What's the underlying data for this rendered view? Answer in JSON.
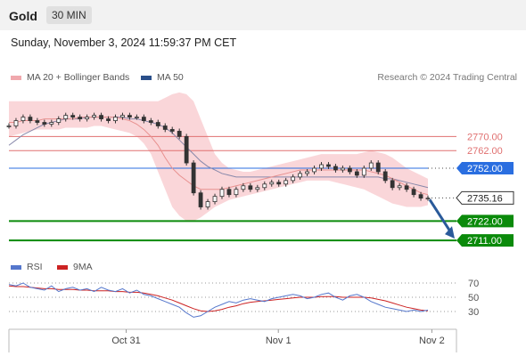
{
  "header": {
    "title": "Gold",
    "timeframe": "30 MIN"
  },
  "datetime": "Sunday, November 3, 2024 11:59:37 PM CET",
  "legend": {
    "ma20": "MA 20 + Bollinger Bands",
    "ma50": "MA 50",
    "rsi": "RSI",
    "rsi_ma": "9MA",
    "credit": "Research © 2024 Trading Central"
  },
  "colors": {
    "band": "#f8c8cc",
    "ma20": "#e8908f",
    "ma50": "#8888aa",
    "resistance": "#e07070",
    "pivot": "#2a6ee0",
    "support": "#0a8a0a",
    "arrow": "#2a5a9a",
    "rsi": "#5577cc",
    "rsi_ma": "#cc2222"
  },
  "chart_data": {
    "type": "line",
    "instrument": "Gold",
    "price_axis_labels": [
      {
        "value": 2770.0,
        "label": "2770.00",
        "kind": "resistance"
      },
      {
        "value": 2762.0,
        "label": "2762.00",
        "kind": "resistance"
      },
      {
        "value": 2752.0,
        "label": "2752.00",
        "kind": "pivot"
      },
      {
        "value": 2735.16,
        "label": "2735.16",
        "kind": "last"
      },
      {
        "value": 2722.0,
        "label": "2722.00",
        "kind": "support"
      },
      {
        "value": 2711.0,
        "label": "2711.00",
        "kind": "support"
      }
    ],
    "ylim": [
      2705,
      2800
    ],
    "x_ticks": [
      {
        "label": "Oct 31",
        "t": 0.262
      },
      {
        "label": "Nov 1",
        "t": 0.602
      },
      {
        "label": "Nov 2",
        "t": 0.945
      }
    ],
    "price_series": [
      2776,
      2779,
      2781,
      2779,
      2778,
      2777,
      2778,
      2780,
      2782,
      2781,
      2780,
      2781,
      2782,
      2780,
      2779,
      2781,
      2782,
      2781,
      2781,
      2779,
      2778,
      2776,
      2774,
      2773,
      2770,
      2755,
      2738,
      2730,
      2733,
      2736,
      2740,
      2737,
      2740,
      2742,
      2740,
      2741,
      2743,
      2744,
      2743,
      2745,
      2747,
      2749,
      2750,
      2752,
      2754,
      2753,
      2751,
      2752,
      2750,
      2748,
      2752,
      2755,
      2750,
      2745,
      2741,
      2742,
      2740,
      2737,
      2735,
      2735
    ],
    "ma50_series": [
      2765,
      2768,
      2771,
      2773,
      2775,
      2777,
      2778,
      2779,
      2780,
      2780,
      2780,
      2781,
      2781,
      2781,
      2781,
      2781,
      2781,
      2780,
      2780,
      2779,
      2778,
      2777,
      2775,
      2772,
      2768,
      2764,
      2760,
      2756,
      2753,
      2751,
      2749,
      2748,
      2747,
      2747,
      2747,
      2747,
      2747,
      2747,
      2747,
      2747,
      2747,
      2747,
      2747,
      2747,
      2747,
      2747,
      2747,
      2747,
      2747,
      2747,
      2747,
      2747,
      2747,
      2746,
      2746,
      2745,
      2744,
      2743,
      2742,
      2741
    ],
    "band_upper": [
      2790,
      2790,
      2790,
      2790,
      2790,
      2790,
      2790,
      2790,
      2790,
      2790,
      2790,
      2790,
      2790,
      2790,
      2790,
      2790,
      2790,
      2790,
      2790,
      2790,
      2790,
      2790,
      2792,
      2794,
      2795,
      2794,
      2790,
      2780,
      2770,
      2760,
      2755,
      2752,
      2751,
      2750,
      2750,
      2751,
      2752,
      2753,
      2754,
      2755,
      2756,
      2757,
      2758,
      2759,
      2760,
      2760,
      2760,
      2760,
      2760,
      2760,
      2761,
      2762,
      2761,
      2760,
      2758,
      2755,
      2752,
      2750,
      2748,
      2746
    ],
    "band_lower": [
      2770,
      2771,
      2772,
      2773,
      2774,
      2774,
      2774,
      2774,
      2775,
      2775,
      2775,
      2775,
      2776,
      2776,
      2775,
      2774,
      2773,
      2772,
      2770,
      2766,
      2760,
      2750,
      2740,
      2730,
      2725,
      2722,
      2722,
      2724,
      2727,
      2730,
      2732,
      2734,
      2735,
      2736,
      2737,
      2738,
      2739,
      2740,
      2741,
      2742,
      2743,
      2744,
      2745,
      2745,
      2745,
      2745,
      2744,
      2743,
      2742,
      2741,
      2740,
      2738,
      2736,
      2734,
      2732,
      2731,
      2730,
      2730,
      2730,
      2731
    ],
    "ma20_series": [
      2778,
      2778,
      2779,
      2779,
      2779,
      2780,
      2780,
      2780,
      2780,
      2780,
      2781,
      2781,
      2781,
      2781,
      2781,
      2781,
      2780,
      2779,
      2777,
      2774,
      2770,
      2765,
      2758,
      2752,
      2748,
      2745,
      2742,
      2740,
      2740,
      2740,
      2740,
      2741,
      2742,
      2743,
      2744,
      2745,
      2746,
      2747,
      2748,
      2749,
      2750,
      2751,
      2751,
      2751,
      2751,
      2751,
      2751,
      2751,
      2751,
      2751,
      2751,
      2750,
      2749,
      2748,
      2746,
      2744,
      2742,
      2740,
      2738,
      2737
    ],
    "forecast_arrow": {
      "from": 2735.16,
      "to": 2711.0
    },
    "rsi": {
      "levels": [
        70,
        50,
        30
      ],
      "ylim": [
        15,
        80
      ],
      "rsi_series": [
        68,
        66,
        70,
        64,
        62,
        60,
        66,
        58,
        62,
        64,
        60,
        62,
        58,
        64,
        60,
        58,
        62,
        56,
        60,
        54,
        52,
        48,
        44,
        40,
        36,
        28,
        22,
        24,
        30,
        36,
        40,
        44,
        42,
        46,
        48,
        46,
        44,
        48,
        50,
        52,
        54,
        52,
        48,
        50,
        54,
        56,
        50,
        46,
        52,
        54,
        50,
        44,
        40,
        36,
        34,
        32,
        30,
        32,
        30,
        32
      ],
      "ma_series": [
        66,
        65,
        65,
        64,
        63,
        62,
        62,
        61,
        61,
        61,
        60,
        60,
        59,
        59,
        59,
        58,
        58,
        57,
        57,
        56,
        54,
        52,
        49,
        46,
        42,
        38,
        34,
        31,
        30,
        31,
        33,
        36,
        38,
        41,
        43,
        44,
        45,
        46,
        47,
        48,
        49,
        50,
        50,
        50,
        51,
        51,
        51,
        50,
        50,
        50,
        50,
        49,
        47,
        45,
        42,
        39,
        36,
        34,
        32,
        31
      ]
    }
  }
}
